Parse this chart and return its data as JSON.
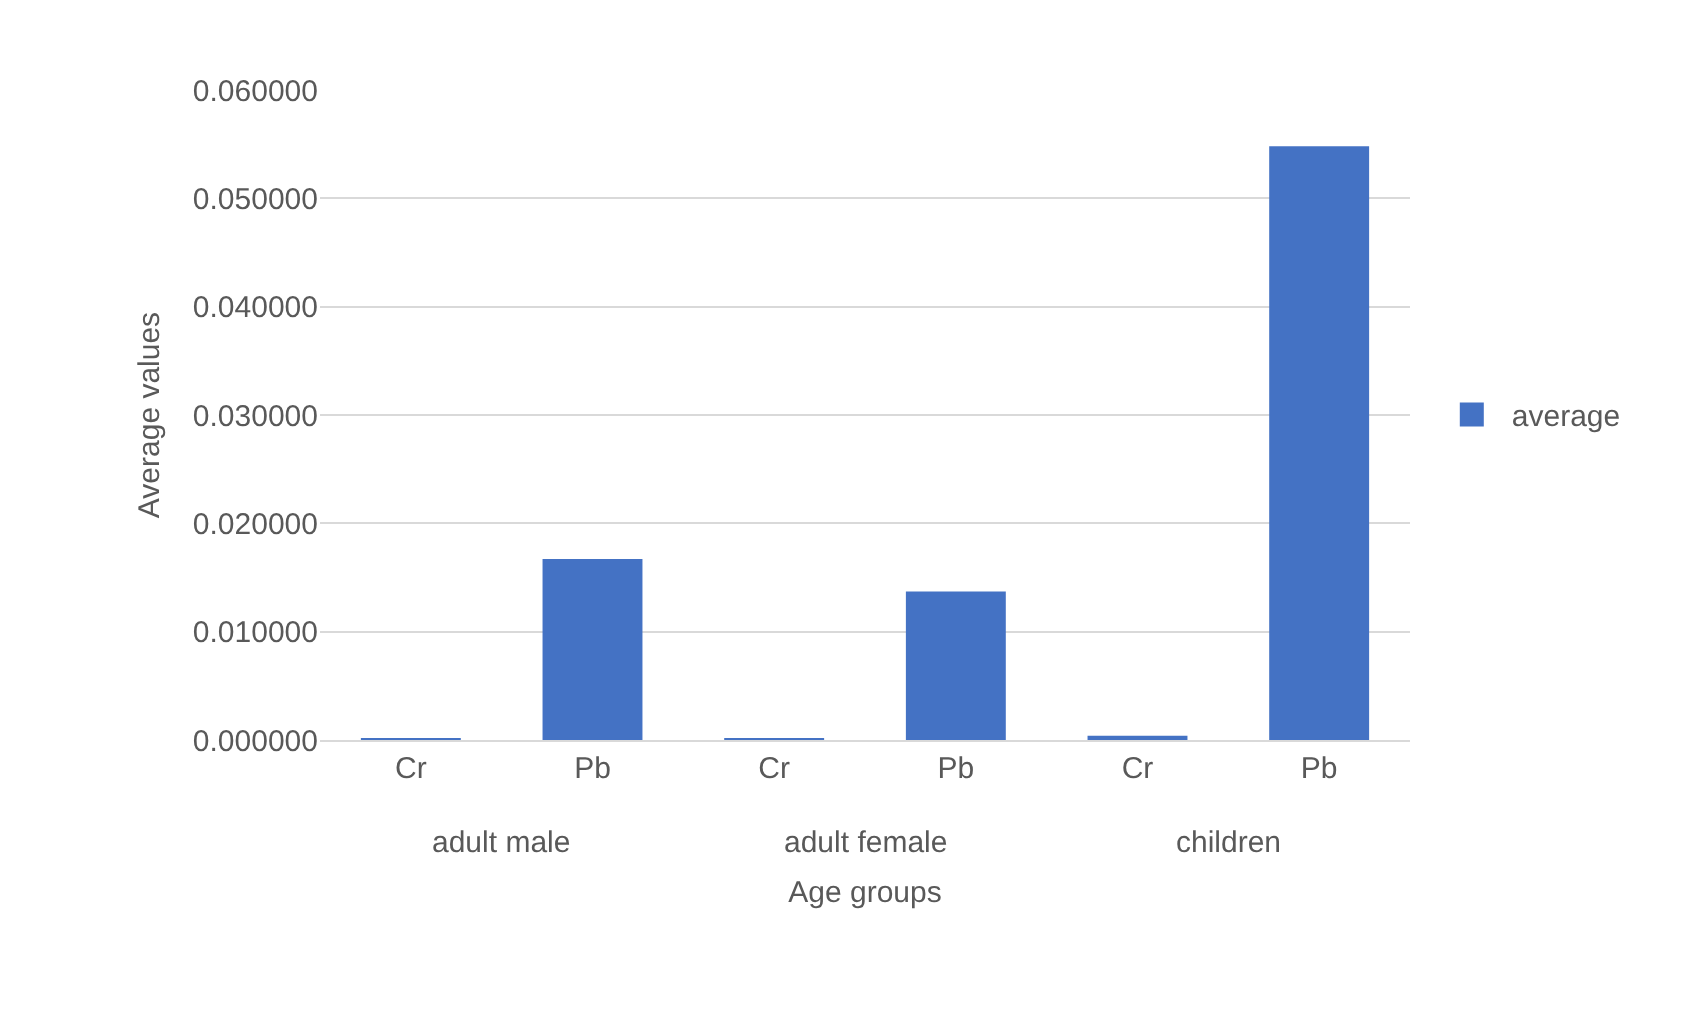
{
  "chart_data": {
    "type": "bar",
    "xlabel": "Age groups",
    "ylabel": "Average values",
    "categories": [
      "Cr",
      "Pb",
      "Cr",
      "Pb",
      "Cr",
      "Pb"
    ],
    "series": [
      {
        "name": "average",
        "color": "#4472c4",
        "values": [
          0.0001,
          0.0167,
          0.0001,
          0.0137,
          0.0004,
          0.0548
        ]
      }
    ],
    "annotations": [
      "adult male",
      "adult female",
      "children"
    ],
    "ylim": [
      0,
      0.06
    ],
    "yticks": [
      {
        "value": 0,
        "label": "0.000000"
      },
      {
        "value": 0.01,
        "label": "0.010000"
      },
      {
        "value": 0.02,
        "label": "0.020000"
      },
      {
        "value": 0.03,
        "label": "0.030000"
      },
      {
        "value": 0.04,
        "label": "0.040000"
      },
      {
        "value": 0.05,
        "label": "0.050000"
      },
      {
        "value": 0.06,
        "label": "0.060000"
      }
    ],
    "grid": "y",
    "legend": "right"
  }
}
